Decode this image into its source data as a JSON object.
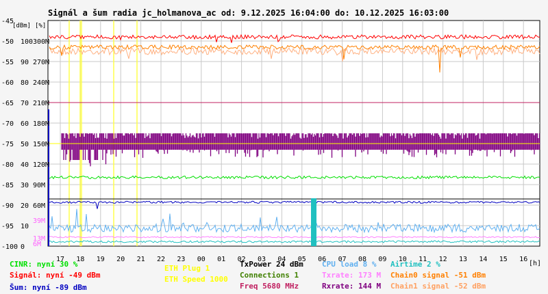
{
  "chart_data": {
    "type": "line",
    "title": "Signál a šum radia jc_holmanova_ac od: 9.12.2025 16:04:00 do: 10.12.2025 16:03:00",
    "unit_label_left": "[dBm]",
    "unit_label_right": "[%]",
    "x_unit": "[h]",
    "x_ticks": [
      "17",
      "18",
      "19",
      "20",
      "21",
      "22",
      "23",
      "00",
      "01",
      "02",
      "03",
      "04",
      "05",
      "06",
      "07",
      "08",
      "09",
      "10",
      "11",
      "12",
      "13",
      "14",
      "15",
      "16"
    ],
    "y_dbm_ticks": [
      "-45",
      "-50",
      "-55",
      "-60",
      "-65",
      "-70",
      "-75",
      "-80",
      "-85",
      "-90",
      "-95",
      "-100"
    ],
    "y_pct_ticks": [
      "100",
      "90",
      "80",
      "70",
      "60",
      "50",
      "40",
      "30",
      "20",
      "10",
      "0"
    ],
    "y_speed_ticks": [
      "300M",
      "270M",
      "240M",
      "210M",
      "180M",
      "150M",
      "120M",
      "90M",
      "60M",
      "39M",
      "13M",
      "6M"
    ],
    "ylim_dbm": [
      -100,
      -45
    ],
    "grid": true,
    "series": [
      {
        "name": "Signál",
        "color": "#ff0000",
        "approx_dbm": -49
      },
      {
        "name": "Chain0 signal",
        "color": "#ff8000",
        "approx_dbm": -51
      },
      {
        "name": "Chain1 signal",
        "color": "#ffa060",
        "approx_dbm": -52
      },
      {
        "name": "Freq",
        "color": "#c02060",
        "approx_dbm": -65
      },
      {
        "name": "Rxrate",
        "color": "#800080",
        "approx_dbm": -75
      },
      {
        "name": "CINR",
        "color": "#00e000",
        "approx_pct": 30
      },
      {
        "name": "Šum",
        "color": "#0000c0",
        "approx_dbm": -89
      },
      {
        "name": "TxPower",
        "color": "#000000",
        "approx_dbm": -88.5
      },
      {
        "name": "CPU load",
        "color": "#60b0f0",
        "approx_pct": 8
      },
      {
        "name": "Airtime",
        "color": "#20c0c0",
        "approx_pct": 2
      },
      {
        "name": "ETH Plug",
        "color": "#ffff00"
      }
    ]
  },
  "legend": [
    {
      "text": "CINR: nyní 30 %",
      "color": "#00e000"
    },
    {
      "text": "Signál: nyní -49 dBm",
      "color": "#ff0000"
    },
    {
      "text": "Šum: nyní -89 dBm",
      "color": "#0000c0"
    },
    {
      "text": "ETH Plug 1",
      "color": "#ffff00"
    },
    {
      "text": "ETH Speed 1000",
      "color": "#ffff00"
    },
    {
      "text": "TxPower 24 dBm",
      "color": "#000000"
    },
    {
      "text": "Connections 1",
      "color": "#408000"
    },
    {
      "text": "Freq 5680 MHz",
      "color": "#c02060"
    },
    {
      "text": "CPU load 8 %",
      "color": "#60b0f0"
    },
    {
      "text": "Txrate: 173 M",
      "color": "#ff80ff"
    },
    {
      "text": "Rxrate: 144 M",
      "color": "#800080"
    },
    {
      "text": "Airtime 2 %",
      "color": "#20c0c0"
    },
    {
      "text": "Chain0 signal -51 dBm",
      "color": "#ff8000"
    },
    {
      "text": "Chain1 signal -52 dBm",
      "color": "#ffa060"
    }
  ]
}
